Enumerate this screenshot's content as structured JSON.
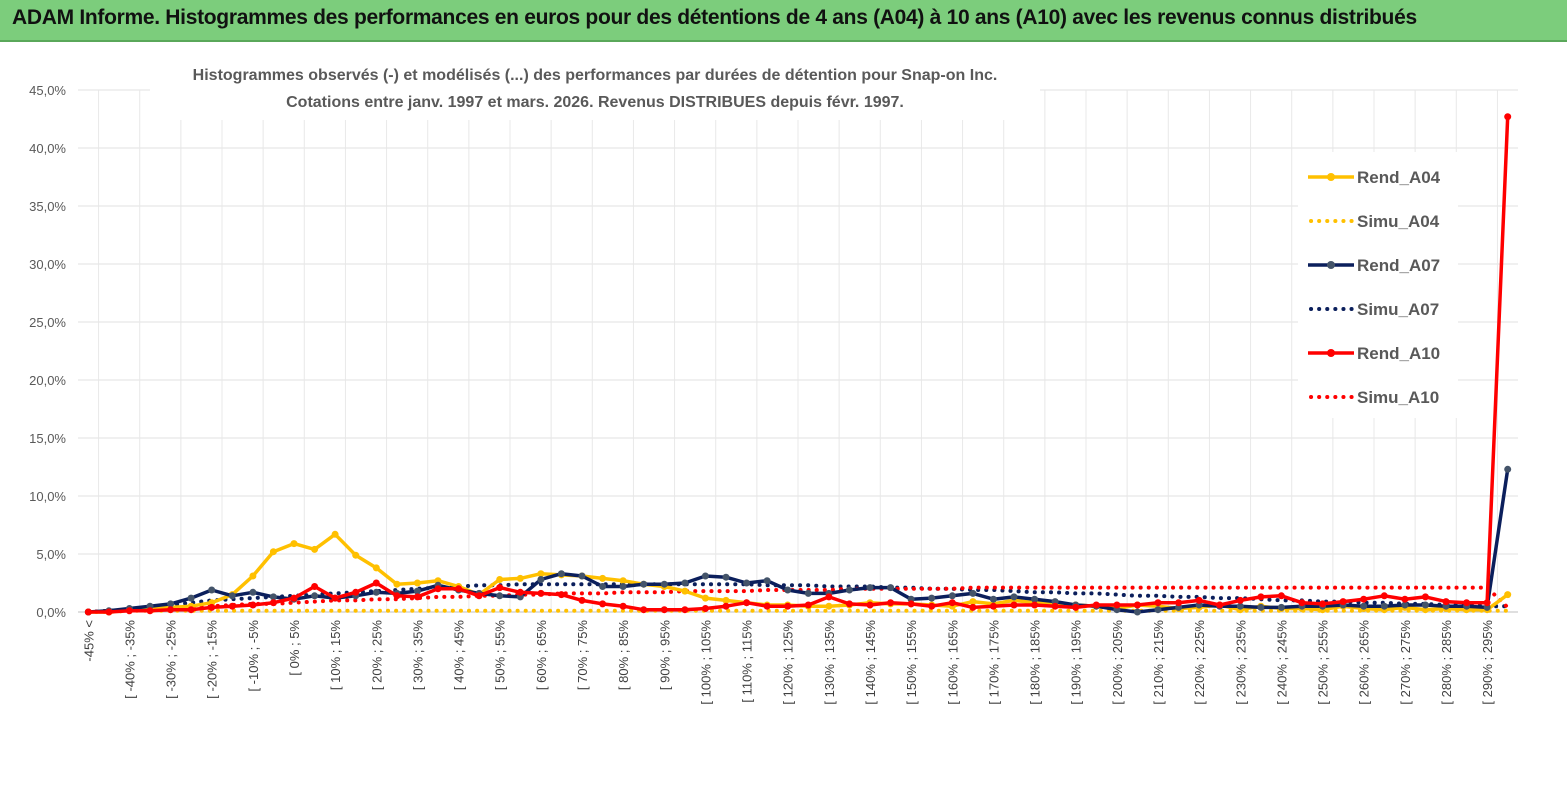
{
  "banner": {
    "title": "ADAM Informe. Histogrammes des performances en euros pour des détentions de 4 ans (A04) à 10 ans (A10) avec les revenus connus distribués"
  },
  "chart_data": {
    "type": "line",
    "title_line1": "Histogrammes observés (-) et modélisés (...) des performances par durées de détention pour Snap-on Inc.",
    "title_line2": "Cotations entre janv. 1997 et mars. 2026. Revenus DISTRIBUES depuis févr. 1997.",
    "ylim": [
      0,
      45
    ],
    "y_ticks": [
      "0,0%",
      "5,0%",
      "10,0%",
      "15,0%",
      "20,0%",
      "25,0%",
      "30,0%",
      "35,0%",
      "40,0%",
      "45,0%"
    ],
    "x_tick_labels": [
      "-45% <",
      "[ -40% ; -35%",
      "[ -30% ; -25%",
      "[ -20% ; -15%",
      "[ -10% ; -5%",
      "[ 0% ; 5%",
      "[ 10% ; 15%",
      "[ 20% ; 25%",
      "[ 30% ; 35%",
      "[ 40% ; 45%",
      "[ 50% ; 55%",
      "[ 60% ; 65%",
      "[ 70% ; 75%",
      "[ 80% ; 85%",
      "[ 90% ; 95%",
      "[ 100% ; 105%",
      "[ 110% ; 115%",
      "[ 120% ; 125%",
      "[ 130% ; 135%",
      "[ 140% ; 145%",
      "[ 150% ; 155%",
      "[ 160% ; 165%",
      "[ 170% ; 175%",
      "[ 180% ; 185%",
      "[ 190% ; 195%",
      "[ 200% ; 205%",
      "[ 210% ; 215%",
      "[ 220% ; 225%",
      "[ 230% ; 235%",
      "[ 240% ; 245%",
      "[ 250% ; 255%",
      "[ 260% ; 265%",
      "[ 270% ; 275%",
      "[ 280% ; 285%",
      "[ 290% ; 295%"
    ],
    "n_points": 70,
    "series": [
      {
        "name": "Rend_A04",
        "style": "solid",
        "color": "#FFC000",
        "values": [
          0,
          0,
          0.2,
          0.3,
          0.4,
          0.5,
          0.8,
          1.5,
          3.1,
          5.2,
          5.9,
          5.4,
          6.7,
          4.9,
          3.8,
          2.4,
          2.5,
          2.7,
          2.2,
          1.5,
          2.8,
          2.9,
          3.3,
          3.2,
          3.1,
          2.9,
          2.7,
          2.4,
          2.2,
          1.8,
          1.2,
          1,
          0.8,
          0.6,
          0.6,
          0.5,
          0.5,
          0.6,
          0.8,
          0.7,
          0.7,
          0.6,
          0.5,
          0.9,
          0.7,
          1,
          0.8,
          0.7,
          0.6,
          0.5,
          0.3,
          0.6,
          0.5,
          0.3,
          0.4,
          0.6,
          0.2,
          0.5,
          0.3,
          0.3,
          0.2,
          0.5,
          0.3,
          0.2,
          0.4,
          0.2,
          0.3,
          0.2,
          0.2,
          1.5
        ]
      },
      {
        "name": "Simu_A04",
        "style": "dotted",
        "color": "#FFC000",
        "values": [
          0,
          0,
          0.1,
          0.1,
          0.1,
          0.1,
          0.1,
          0.1,
          0.1,
          0.1,
          0.1,
          0.1,
          0.1,
          0.1,
          0.1,
          0.1,
          0.1,
          0.1,
          0.1,
          0.1,
          0.1,
          0.1,
          0.1,
          0.1,
          0.1,
          0.1,
          0.1,
          0.1,
          0.1,
          0.1,
          0.1,
          0.1,
          0.1,
          0.1,
          0.1,
          0.1,
          0.1,
          0.1,
          0.1,
          0.1,
          0.1,
          0.1,
          0.1,
          0.1,
          0.1,
          0.1,
          0.1,
          0.1,
          0.1,
          0.1,
          0.1,
          0.1,
          0.1,
          0.1,
          0.1,
          0.1,
          0.1,
          0.1,
          0.1,
          0.1,
          0.1,
          0.1,
          0.1,
          0.1,
          0.1,
          0.1,
          0.1,
          0.1,
          0.1,
          0.1
        ]
      },
      {
        "name": "Rend_A07",
        "style": "solid",
        "color": "#0B1F5C",
        "values": [
          0,
          0.1,
          0.3,
          0.5,
          0.7,
          1.2,
          1.9,
          1.4,
          1.7,
          1.3,
          1.1,
          1.4,
          1.2,
          1.4,
          1.7,
          1.6,
          1.8,
          2.3,
          1.9,
          1.6,
          1.4,
          1.3,
          2.8,
          3.3,
          3.1,
          2.2,
          2.2,
          2.4,
          2.4,
          2.5,
          3.1,
          3,
          2.5,
          2.7,
          1.9,
          1.6,
          1.6,
          1.9,
          2.1,
          2.1,
          1.1,
          1.2,
          1.4,
          1.6,
          1.1,
          1.3,
          1.1,
          0.9,
          0.6,
          0.5,
          0.2,
          0,
          0.2,
          0.4,
          0.6,
          0.5,
          0.5,
          0.4,
          0.4,
          0.5,
          0.5,
          0.6,
          0.5,
          0.5,
          0.6,
          0.6,
          0.5,
          0.5,
          0.4,
          12.3
        ]
      },
      {
        "name": "Simu_A07",
        "style": "dotted",
        "color": "#0B1F5C",
        "values": [
          0,
          0.1,
          0.2,
          0.4,
          0.6,
          0.8,
          1,
          1.1,
          1.2,
          1.3,
          1.4,
          1.5,
          1.6,
          1.7,
          1.8,
          1.9,
          2,
          2.1,
          2.2,
          2.3,
          2.3,
          2.4,
          2.4,
          2.4,
          2.4,
          2.4,
          2.4,
          2.4,
          2.4,
          2.4,
          2.4,
          2.4,
          2.4,
          2.3,
          2.3,
          2.3,
          2.2,
          2.2,
          2.2,
          2.1,
          2.1,
          2,
          2,
          1.9,
          1.9,
          1.8,
          1.7,
          1.7,
          1.6,
          1.6,
          1.5,
          1.4,
          1.4,
          1.3,
          1.3,
          1.2,
          1.2,
          1.1,
          1,
          1,
          0.9,
          0.9,
          0.8,
          0.8,
          0.7,
          0.7,
          0.6,
          0.6,
          0.5,
          0.5
        ]
      },
      {
        "name": "Rend_A10",
        "style": "solid",
        "color": "#FF0000",
        "values": [
          0,
          0,
          0.1,
          0.1,
          0.2,
          0.2,
          0.4,
          0.5,
          0.6,
          0.8,
          1.2,
          2.2,
          1.2,
          1.7,
          2.5,
          1.4,
          1.3,
          2,
          2,
          1.4,
          2.1,
          1.7,
          1.6,
          1.5,
          1,
          0.7,
          0.5,
          0.2,
          0.2,
          0.2,
          0.3,
          0.5,
          0.8,
          0.5,
          0.5,
          0.6,
          1.3,
          0.7,
          0.6,
          0.8,
          0.7,
          0.5,
          0.8,
          0.4,
          0.5,
          0.6,
          0.6,
          0.5,
          0.4,
          0.6,
          0.6,
          0.6,
          0.8,
          0.8,
          1,
          0.6,
          1,
          1.3,
          1.4,
          0.8,
          0.7,
          0.9,
          1.1,
          1.4,
          1.1,
          1.3,
          0.9,
          0.8,
          0.8,
          42.7
        ]
      },
      {
        "name": "Simu_A10",
        "style": "dotted",
        "color": "#FF0000",
        "values": [
          0,
          0.1,
          0.2,
          0.3,
          0.3,
          0.4,
          0.5,
          0.6,
          0.7,
          0.7,
          0.8,
          0.9,
          1,
          1,
          1.1,
          1.1,
          1.2,
          1.3,
          1.3,
          1.4,
          1.4,
          1.5,
          1.5,
          1.6,
          1.6,
          1.6,
          1.7,
          1.7,
          1.7,
          1.8,
          1.8,
          1.8,
          1.8,
          1.9,
          1.9,
          1.9,
          1.9,
          2,
          2,
          2,
          2,
          2,
          2,
          2.1,
          2.1,
          2.1,
          2.1,
          2.1,
          2.1,
          2.1,
          2.1,
          2.1,
          2.1,
          2.1,
          2.1,
          2.1,
          2.1,
          2.1,
          2.1,
          2.1,
          2.1,
          2.1,
          2.1,
          2.1,
          2.1,
          2.1,
          2.1,
          2.1,
          2.1,
          0.4
        ]
      }
    ],
    "legend": {
      "position": "right",
      "entries": [
        "Rend_A04",
        "Simu_A04",
        "Rend_A07",
        "Simu_A07",
        "Rend_A10",
        "Simu_A10"
      ]
    }
  }
}
